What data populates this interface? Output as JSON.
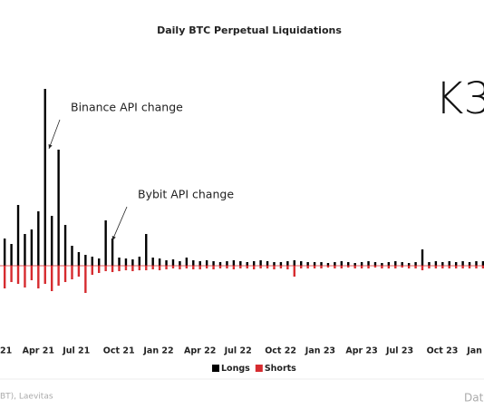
{
  "chart_data": {
    "type": "bar",
    "title": "Daily BTC Perpetual Liquidations",
    "categories": [
      "21",
      null,
      null,
      null,
      null,
      null,
      "Apr 21",
      null,
      null,
      null,
      null,
      null,
      "Jul 21",
      null,
      null,
      null,
      null,
      null,
      "Oct 21",
      null,
      null,
      null,
      null,
      null,
      "Jan 22",
      null,
      null,
      null,
      null,
      null,
      "Apr 22",
      null,
      null,
      null,
      null,
      null,
      "Jul 22",
      null,
      null,
      null,
      null,
      null,
      "Oct 22",
      null,
      null,
      null,
      null,
      null,
      "Jan 23",
      null,
      null,
      null,
      null,
      null,
      "Apr 23",
      null,
      null,
      null,
      null,
      null,
      "Jul 23",
      null,
      null,
      null,
      null,
      null,
      "Oct 23",
      null,
      null,
      null,
      null,
      null,
      "Jan",
      null
    ],
    "series": [
      {
        "name": "Longs",
        "color": "#000000",
        "values": [
          18,
          30,
          24,
          67,
          35,
          40,
          60,
          195,
          55,
          128,
          45,
          22,
          15,
          12,
          10,
          8,
          50,
          30,
          9,
          8,
          7,
          10,
          35,
          9,
          8,
          6,
          7,
          5,
          9,
          6,
          5,
          6,
          5,
          4,
          5,
          6,
          5,
          4,
          5,
          6,
          5,
          4,
          4,
          5,
          6,
          5,
          4,
          4,
          4,
          3,
          4,
          5,
          4,
          3,
          4,
          5,
          4,
          3,
          4,
          5,
          4,
          3,
          4,
          18,
          4,
          5,
          4,
          5,
          4,
          5,
          4,
          5,
          5,
          4
        ]
      },
      {
        "name": "Shorts",
        "color": "#d62b2f",
        "values": [
          22,
          25,
          18,
          20,
          24,
          16,
          25,
          20,
          28,
          22,
          18,
          15,
          12,
          30,
          10,
          8,
          6,
          7,
          6,
          5,
          6,
          5,
          5,
          4,
          5,
          4,
          3,
          4,
          3,
          4,
          4,
          3,
          4,
          3,
          3,
          4,
          3,
          3,
          4,
          3,
          3,
          4,
          3,
          4,
          12,
          3,
          3,
          3,
          3,
          2,
          3,
          3,
          2,
          3,
          3,
          3,
          2,
          3,
          3,
          3,
          2,
          3,
          3,
          5,
          3,
          3,
          3,
          3,
          3,
          3,
          3,
          3,
          3,
          3
        ]
      }
    ],
    "annotations": [
      "Binance API change",
      "Bybit API change"
    ],
    "logo": "K3",
    "source": "BT), Laevitas",
    "x_label": "Date"
  }
}
